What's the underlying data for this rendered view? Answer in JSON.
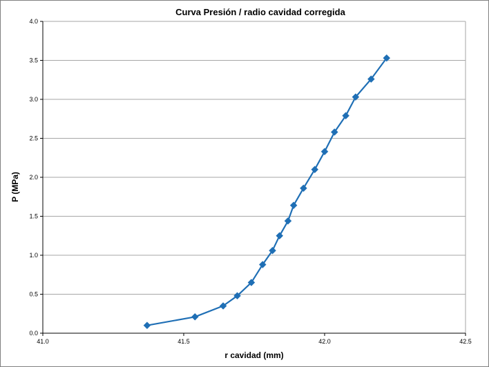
{
  "chart_data": {
    "type": "line",
    "title": "Curva Presión / radio cavidad corregida",
    "xlabel": "r cavidad (mm)",
    "ylabel": "P (MPa)",
    "xlim": [
      41.0,
      42.5
    ],
    "ylim": [
      0.0,
      4.0
    ],
    "x_ticks": [
      "41.0",
      "41.5",
      "42.0",
      "42.5"
    ],
    "y_ticks": [
      "0.0",
      "0.5",
      "1.0",
      "1.5",
      "2.0",
      "2.5",
      "3.0",
      "3.5",
      "4.0"
    ],
    "grid": "horizontal major gridlines",
    "legend": "none",
    "series_color": "#1f6fb5",
    "marker": "diamond",
    "series": [
      {
        "x": [
          41.37,
          41.54,
          41.64,
          41.69,
          41.74,
          41.78,
          41.815,
          41.84,
          41.87,
          41.89,
          41.925,
          41.965,
          42.0,
          42.035,
          42.075,
          42.11,
          42.165,
          42.22
        ],
        "y": [
          0.1,
          0.21,
          0.35,
          0.48,
          0.65,
          0.88,
          1.06,
          1.25,
          1.44,
          1.64,
          1.86,
          2.1,
          2.33,
          2.58,
          2.79,
          3.03,
          3.26,
          3.53
        ]
      }
    ]
  }
}
